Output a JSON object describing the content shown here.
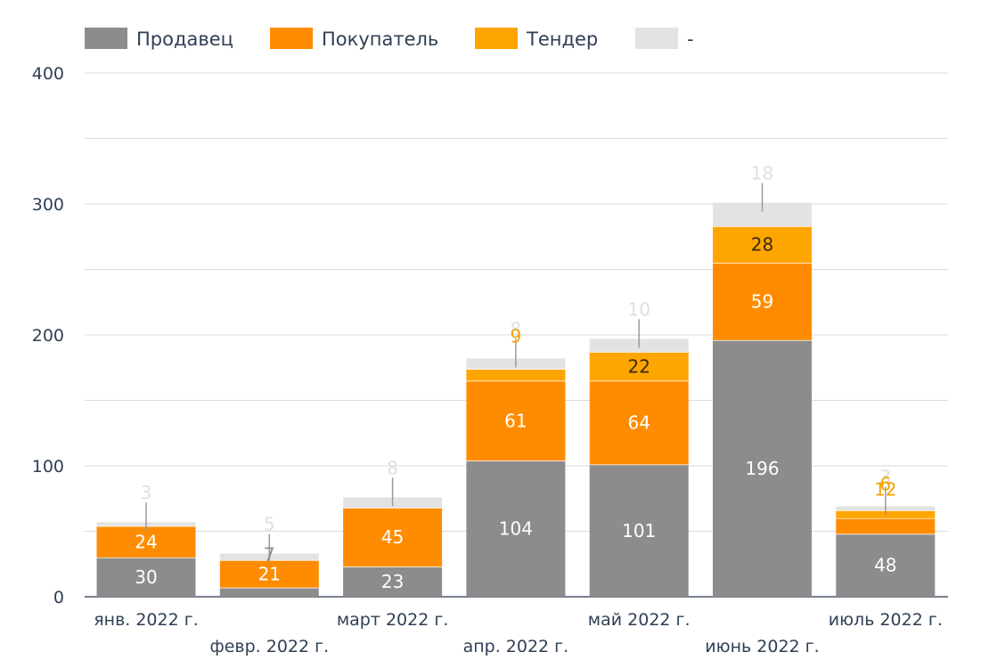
{
  "chart_data": {
    "type": "bar",
    "stacked": true,
    "categories": [
      "янв. 2022 г.",
      "февр. 2022 г.",
      "март 2022 г.",
      "апр. 2022 г.",
      "май 2022 г.",
      "июнь 2022 г.",
      "июль 2022 г."
    ],
    "series": [
      {
        "name": "Продавец",
        "color": "#8c8c8c",
        "values": [
          30,
          7,
          23,
          104,
          101,
          196,
          48
        ],
        "label_color": "#ffffff"
      },
      {
        "name": "Покупатель",
        "color": "#ff8c00",
        "values": [
          24,
          21,
          45,
          61,
          64,
          59,
          12
        ],
        "label_color": "#ffffff"
      },
      {
        "name": "Тендер",
        "color": "#ffa500",
        "values": [
          0,
          0,
          0,
          9,
          22,
          28,
          6
        ],
        "label_color": "#3a2a10"
      },
      {
        "name": "-",
        "color": "#e3e3e3",
        "values": [
          3,
          5,
          8,
          8,
          10,
          18,
          3
        ],
        "label_color": "#e0e0e0"
      }
    ],
    "ylim": [
      0,
      400
    ],
    "yticks": [
      0,
      100,
      200,
      300,
      400
    ],
    "grid": true,
    "legend_position": "top-left",
    "xlabel": "",
    "ylabel": "",
    "outside_label_color_buyer": "#f4a300",
    "outside_label_color_tender": "#f4a300"
  }
}
